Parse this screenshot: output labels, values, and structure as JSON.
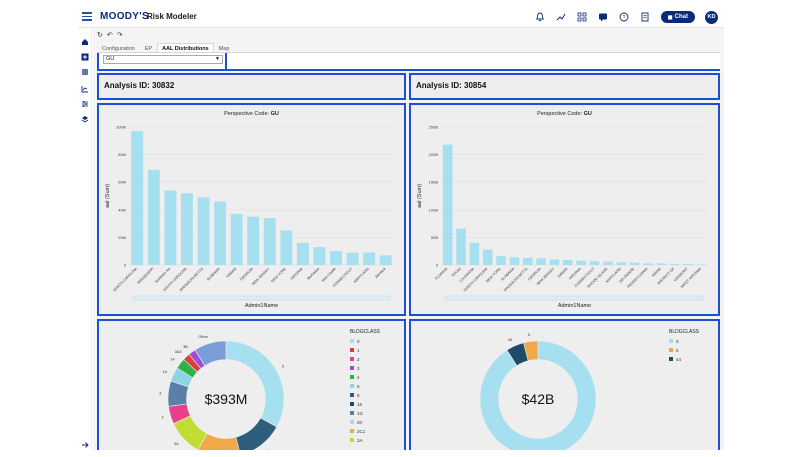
{
  "app": {
    "logo": "MOODY'S",
    "name": "Risk Modeler",
    "chat_label": "Chat",
    "avatar_initials": "KD"
  },
  "tabs": [
    {
      "label": "Configuration",
      "active": false
    },
    {
      "label": "EP",
      "active": false
    },
    {
      "label": "AAL Distributions",
      "active": true
    },
    {
      "label": "Map",
      "active": false
    }
  ],
  "filter": {
    "value": "GU"
  },
  "panels": {
    "left_header": "Analysis ID: 30832",
    "right_header": "Analysis ID: 30854"
  },
  "colors": {
    "accent_border": "#1d4ed8",
    "bar": "#a6dff0",
    "brand": "#0a2a7c"
  },
  "chart_data": [
    {
      "type": "bar",
      "title": "Perspective Code: GU",
      "title_prefix": "Perspective Code:",
      "title_value": "GU",
      "xlabel": "Admin1Name",
      "ylabel": "aal (Sum)",
      "ylim": [
        0,
        100
      ],
      "yticks": [
        "0",
        "20M",
        "40M",
        "60M",
        "80M",
        "100M"
      ],
      "categories": [
        "NORTH CAROLINA",
        "MISSISSIPPI",
        "Southern Ho",
        "SOUTH CAROLINA",
        "MASSACHUSETTS",
        "ALABAMA",
        "HAWAII",
        "GEORGIA",
        "NEW JERSEY",
        "NEW YORK",
        "VIRGINIA",
        "Barbados",
        "New Castle",
        "CONNECTICUT",
        "MARYLAND",
        "Jamaica"
      ],
      "values": [
        97,
        69,
        54,
        52,
        49,
        46,
        37,
        35,
        34,
        25,
        16,
        13,
        10,
        9,
        9,
        7
      ]
    },
    {
      "type": "bar",
      "title": "Perspective Code: GU",
      "title_prefix": "Perspective Code:",
      "title_value": "GU",
      "xlabel": "Admin1Name",
      "ylabel": "aal (Sum)",
      "ylim": [
        0,
        250
      ],
      "yticks": [
        "0",
        "50B",
        "100B",
        "150B",
        "200B",
        "250B"
      ],
      "categories": [
        "FLORIDA",
        "TEXAS",
        "LOUISIANA",
        "NORTH CAROLINA",
        "NEW YORK",
        "ALABAMA",
        "MASSACHUSETTS",
        "GEORGIA",
        "NEW JERSEY",
        "HAWAII",
        "VIRGINIA",
        "CONNECTICUT",
        "RHODE ISLAND",
        "MARYLAND",
        "DELAWARE",
        "PENNSYLVANIA",
        "MAINE",
        "DISTRICT OF",
        "VERMONT",
        "WEST VIRGINIA"
      ],
      "values": [
        218,
        66,
        40,
        28,
        16,
        14,
        13,
        12,
        10,
        9,
        8,
        7,
        6,
        5,
        4,
        3,
        3,
        2,
        2,
        1
      ]
    },
    {
      "type": "pie",
      "center_label": "$393M",
      "legend_title": "BLDGCLASS",
      "legend": [
        {
          "label": "0",
          "color": "#a6dff0"
        },
        {
          "label": "1",
          "color": "#e23b3b"
        },
        {
          "label": "2",
          "color": "#e83e8c"
        },
        {
          "label": "3",
          "color": "#9c4fd6"
        },
        {
          "label": "4",
          "color": "#2fb24a"
        },
        {
          "label": "5",
          "color": "#8fd3e8"
        },
        {
          "label": "6",
          "color": "#2f5d7c"
        },
        {
          "label": "16",
          "color": "#1f4a68"
        },
        {
          "label": "1G",
          "color": "#5b7fa8"
        },
        {
          "label": "20",
          "color": "#b8d4e8"
        },
        {
          "label": "2C1",
          "color": "#f0a848"
        },
        {
          "label": "3A",
          "color": "#c3dc34"
        }
      ],
      "slices": [
        {
          "label": "0",
          "value": 33,
          "color": "#a6dff0"
        },
        {
          "label": "6",
          "value": 13,
          "color": "#2f5d7c"
        },
        {
          "label": "2C1",
          "value": 12,
          "color": "#f0a848"
        },
        {
          "label": "3A",
          "value": 10,
          "color": "#c3dc34"
        },
        {
          "label": "2",
          "value": 5,
          "color": "#e83e8c"
        },
        {
          "label": "3",
          "value": 7,
          "color": "#5b7fa8"
        },
        {
          "label": "1A",
          "value": 4,
          "color": "#8fd3e8"
        },
        {
          "label": "14",
          "value": 3,
          "color": "#2fb24a"
        },
        {
          "label": "3A3",
          "value": 2,
          "color": "#e23b3b"
        },
        {
          "label": "3B",
          "value": 2,
          "color": "#9c4fd6"
        },
        {
          "label": "Other",
          "value": 9,
          "color": "#7c9ed8"
        }
      ]
    },
    {
      "type": "pie",
      "center_label": "$42B",
      "legend_title": "BLDGCLASS",
      "legend": [
        {
          "label": "0",
          "color": "#a6dff0"
        },
        {
          "label": "5",
          "color": "#f0a848"
        },
        {
          "label": "44",
          "color": "#1f4a68"
        }
      ],
      "slices": [
        {
          "label": "0",
          "value": 91,
          "color": "#a6dff0"
        },
        {
          "label": "44",
          "value": 5,
          "color": "#1f4a68"
        },
        {
          "label": "5",
          "value": 4,
          "color": "#f0a848"
        }
      ]
    }
  ]
}
